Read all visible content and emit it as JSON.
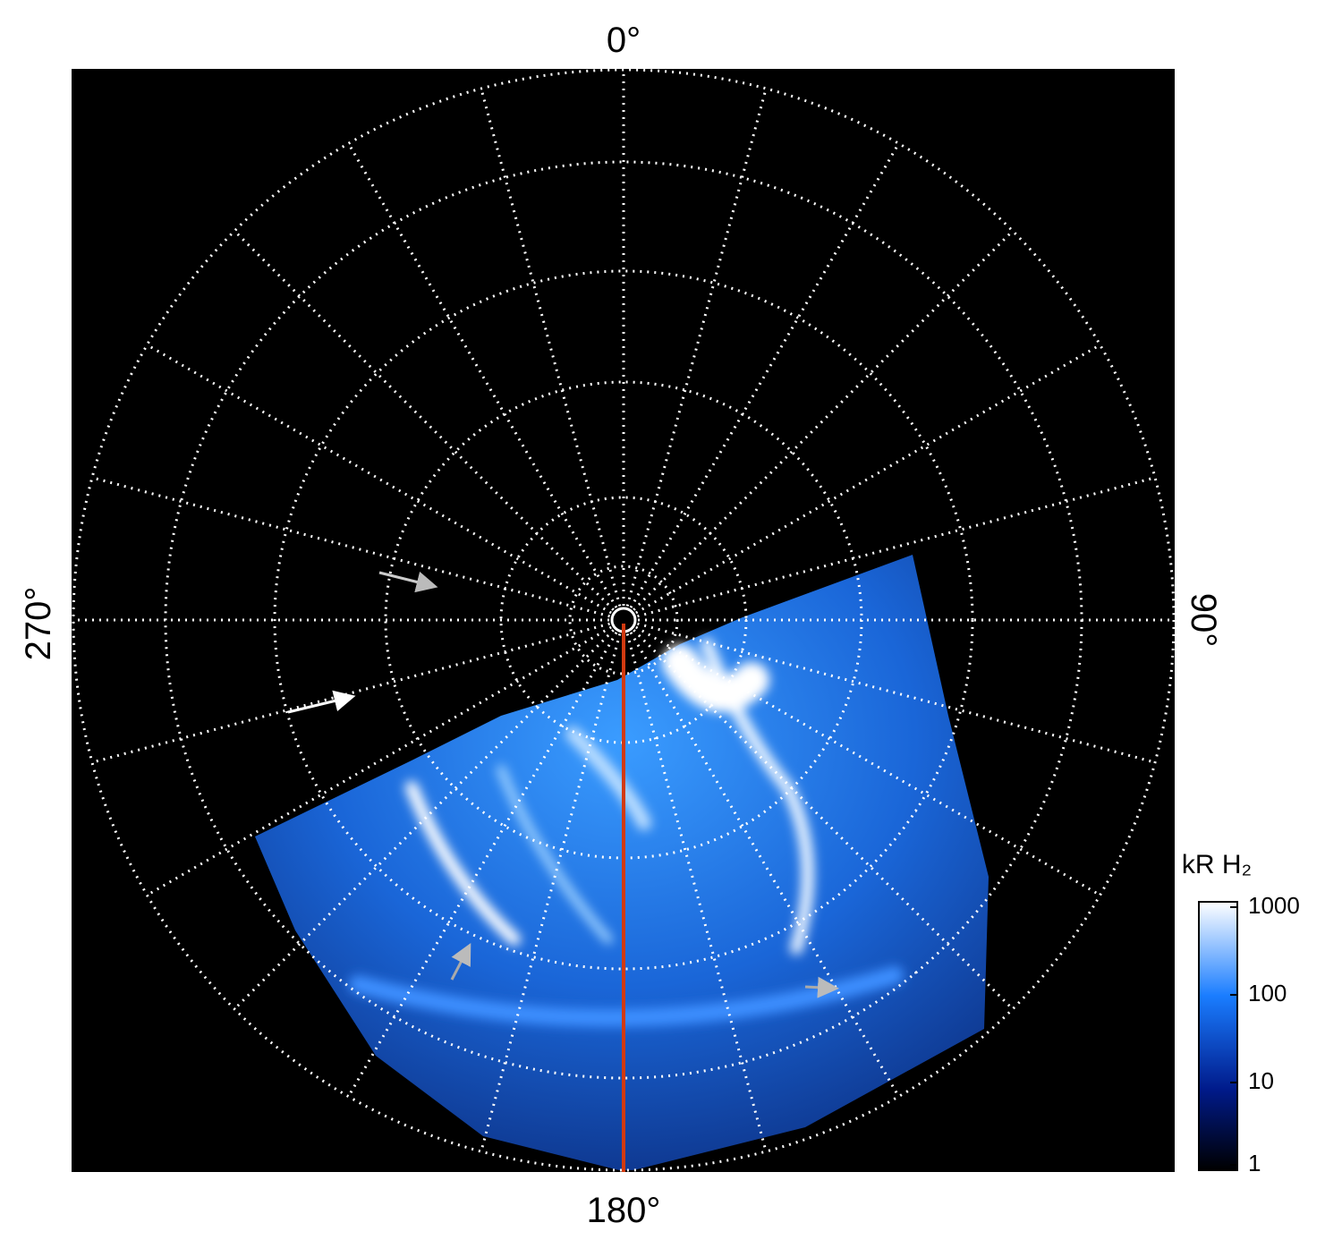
{
  "labels": {
    "top": "0°",
    "right": "90°",
    "bottom": "180°",
    "left": "270°"
  },
  "colorbar": {
    "label": "kR H₂",
    "scale": "log",
    "lim": [
      1,
      1150
    ],
    "ticks": [
      1,
      10,
      100,
      1000
    ]
  }
}
